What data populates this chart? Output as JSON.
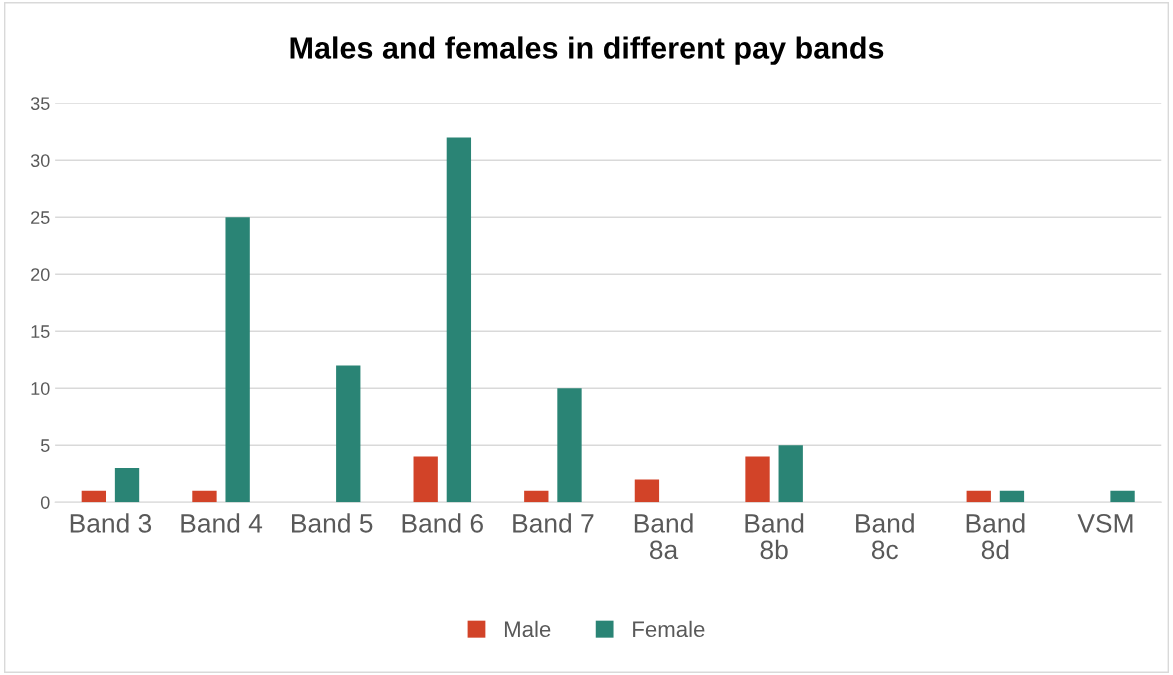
{
  "chart_data": {
    "type": "bar",
    "title": "Males and females in different pay bands",
    "categories": [
      "Band 3",
      "Band 4",
      "Band 5",
      "Band 6",
      "Band 7",
      "Band 8a",
      "Band 8b",
      "Band 8c",
      "Band 8d",
      "VSM"
    ],
    "series": [
      {
        "name": "Male",
        "color": "#d24328",
        "values": [
          1,
          1,
          0,
          4,
          1,
          2,
          4,
          0,
          1,
          0
        ]
      },
      {
        "name": "Female",
        "color": "#2a8475",
        "values": [
          3,
          25,
          12,
          32,
          10,
          0,
          5,
          0,
          1,
          1
        ]
      }
    ],
    "ylim": [
      0,
      35
    ],
    "yticks": [
      0,
      5,
      10,
      15,
      20,
      25,
      30,
      35
    ],
    "grid": "y",
    "legend": "bottom"
  }
}
